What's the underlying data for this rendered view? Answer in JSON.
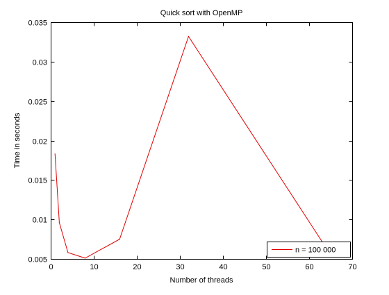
{
  "chart_data": {
    "type": "line",
    "title": "Quick sort with OpenMP",
    "xlabel": "Number of threads",
    "ylabel": "Time in seconds",
    "xlim": [
      0,
      70
    ],
    "ylim": [
      0.005,
      0.035
    ],
    "xticks": [
      0,
      10,
      20,
      30,
      40,
      50,
      60,
      70
    ],
    "yticks": [
      0.005,
      0.01,
      0.015,
      0.02,
      0.025,
      0.03,
      0.035
    ],
    "ytick_labels": [
      "0.005",
      "0.01",
      "0.015",
      "0.02",
      "0.025",
      "0.03",
      "0.035"
    ],
    "grid": false,
    "legend_position": "bottom-right",
    "series": [
      {
        "name": "n = 100 000",
        "color": "#e00000",
        "x": [
          1,
          2,
          4,
          8,
          16,
          32,
          63
        ],
        "y": [
          0.0183,
          0.0096,
          0.0058,
          0.0051,
          0.0075,
          0.0332,
          0.0072
        ]
      }
    ]
  }
}
